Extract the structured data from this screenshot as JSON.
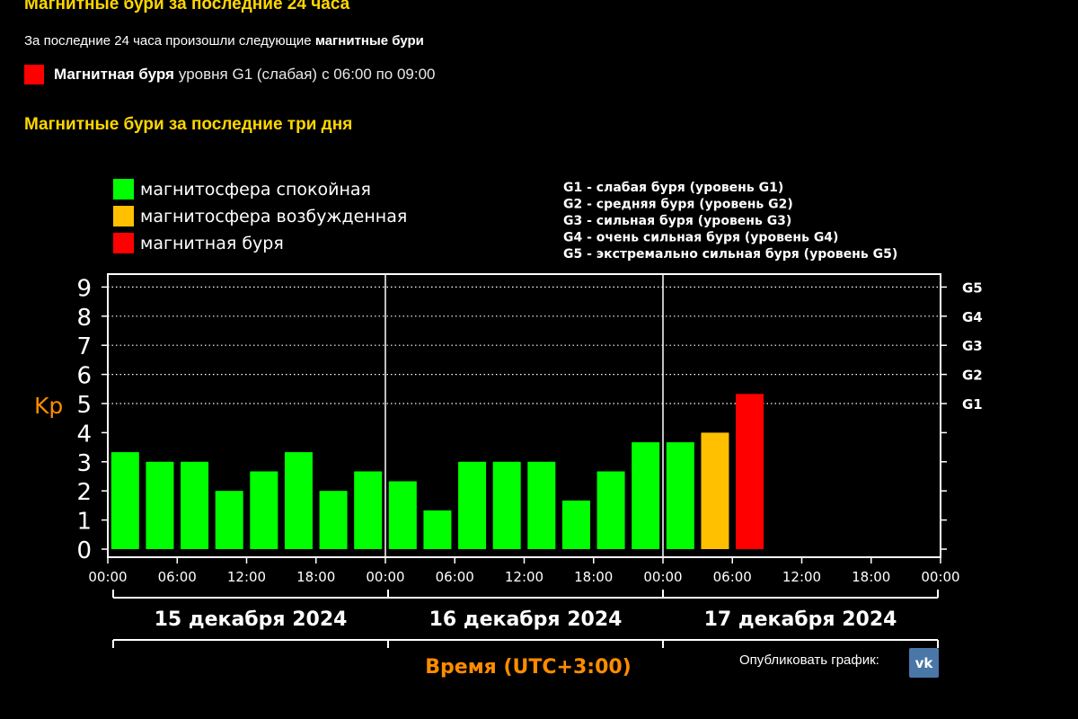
{
  "header": {
    "title_24h": "Магнитные бури за последние 24 часа",
    "intro_text": "За последние 24 часа произошли следующие ",
    "intro_bold": "магнитные бури",
    "storm_bold": "Магнитная буря",
    "storm_level": "уровня G1 (слабая)",
    "storm_time": "с 06:00 по 09:00",
    "title_3d": "Магнитные бури за последние три дня"
  },
  "colors": {
    "calm": "#00ff00",
    "excited": "#ffc000",
    "storm": "#ff0000",
    "heading": "#ffd700",
    "accent_orange": "#ff8c00"
  },
  "chart_data": {
    "type": "bar",
    "title": "",
    "ylabel": "Kp",
    "xlabel": "Время (UTC+3:00)",
    "ylim": [
      0,
      9
    ],
    "yticks": [
      "0",
      "1",
      "2",
      "3",
      "4",
      "5",
      "6",
      "7",
      "8",
      "9"
    ],
    "grid": "dotted horizontal at 5–9",
    "g_levels": [
      {
        "label": "G1",
        "kp": 5
      },
      {
        "label": "G2",
        "kp": 6
      },
      {
        "label": "G3",
        "kp": 7
      },
      {
        "label": "G4",
        "kp": 8
      },
      {
        "label": "G5",
        "kp": 9
      }
    ],
    "legend": [
      {
        "label": "магнитосфера спокойная",
        "color": "#00ff00"
      },
      {
        "label": "магнитосфера возбужденная",
        "color": "#ffc000"
      },
      {
        "label": "магнитная буря",
        "color": "#ff0000"
      }
    ],
    "g_legend": [
      "G1 - слабая буря (уровень G1)",
      "G2 - средняя буря (уровень G2)",
      "G3 - сильная буря (уровень G3)",
      "G4 - очень сильная буря (уровень G4)",
      "G5 - экстремально сильная буря (уровень G5)"
    ],
    "days": [
      {
        "label": "15 декабря 2024",
        "bars": [
          {
            "time": "00:00",
            "kp": 3.33,
            "status": "calm"
          },
          {
            "time": "03:00",
            "kp": 3.0,
            "status": "calm"
          },
          {
            "time": "06:00",
            "kp": 3.0,
            "status": "calm"
          },
          {
            "time": "09:00",
            "kp": 2.0,
            "status": "calm"
          },
          {
            "time": "12:00",
            "kp": 2.67,
            "status": "calm"
          },
          {
            "time": "15:00",
            "kp": 3.33,
            "status": "calm"
          },
          {
            "time": "18:00",
            "kp": 2.0,
            "status": "calm"
          },
          {
            "time": "21:00",
            "kp": 2.67,
            "status": "calm"
          }
        ]
      },
      {
        "label": "16 декабря 2024",
        "bars": [
          {
            "time": "00:00",
            "kp": 2.33,
            "status": "calm"
          },
          {
            "time": "03:00",
            "kp": 1.33,
            "status": "calm"
          },
          {
            "time": "06:00",
            "kp": 3.0,
            "status": "calm"
          },
          {
            "time": "09:00",
            "kp": 3.0,
            "status": "calm"
          },
          {
            "time": "12:00",
            "kp": 3.0,
            "status": "calm"
          },
          {
            "time": "15:00",
            "kp": 1.67,
            "status": "calm"
          },
          {
            "time": "18:00",
            "kp": 2.67,
            "status": "calm"
          },
          {
            "time": "21:00",
            "kp": 3.67,
            "status": "calm"
          }
        ]
      },
      {
        "label": "17 декабря 2024",
        "bars": [
          {
            "time": "00:00",
            "kp": 3.67,
            "status": "calm"
          },
          {
            "time": "03:00",
            "kp": 4.0,
            "status": "excited"
          },
          {
            "time": "06:00",
            "kp": 5.33,
            "status": "storm"
          }
        ]
      }
    ],
    "xtick_labels": [
      "00:00",
      "06:00",
      "12:00",
      "18:00",
      "00:00",
      "06:00",
      "12:00",
      "18:00",
      "00:00",
      "06:00",
      "12:00",
      "18:00",
      "00:00"
    ]
  },
  "footer": {
    "publish_label": "Опубликовать график:",
    "vk_label": "vk",
    "vk_icon": "vk-logo-icon"
  }
}
